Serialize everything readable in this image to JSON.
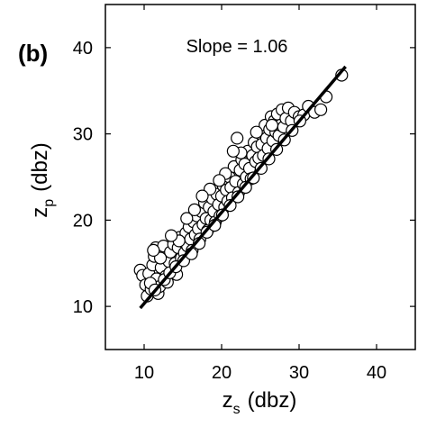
{
  "panel_label": "(b)",
  "chart_data": {
    "type": "scatter",
    "title": "",
    "xlabel": "z",
    "xlabel_sub": "s",
    "xlabel_unit": "(dbz)",
    "ylabel": "z",
    "ylabel_sub": "p",
    "ylabel_unit": "(dbz)",
    "xlim": [
      5,
      45
    ],
    "ylim": [
      5,
      45
    ],
    "xticks": [
      10,
      20,
      30,
      40
    ],
    "yticks": [
      10,
      20,
      30,
      40
    ],
    "annotation": "Slope = 1.06",
    "grid": false,
    "fit_line": {
      "slope": 1.06,
      "points": [
        [
          9.5,
          9.8
        ],
        [
          36.0,
          37.8
        ]
      ]
    },
    "points": [
      [
        9.5,
        14.2
      ],
      [
        9.8,
        13.6
      ],
      [
        10.2,
        12.5
      ],
      [
        10.4,
        11.2
      ],
      [
        10.6,
        13.8
      ],
      [
        10.9,
        12.0
      ],
      [
        11.1,
        14.8
      ],
      [
        11.3,
        15.8
      ],
      [
        11.5,
        16.8
      ],
      [
        11.6,
        13.2
      ],
      [
        11.8,
        11.5
      ],
      [
        12.0,
        12.3
      ],
      [
        12.2,
        14.5
      ],
      [
        12.4,
        16.0
      ],
      [
        12.5,
        17.0
      ],
      [
        12.8,
        13.5
      ],
      [
        13.0,
        12.8
      ],
      [
        13.2,
        15.2
      ],
      [
        13.4,
        16.3
      ],
      [
        13.6,
        14.0
      ],
      [
        13.8,
        17.2
      ],
      [
        14.0,
        15.0
      ],
      [
        14.2,
        13.7
      ],
      [
        14.4,
        16.8
      ],
      [
        14.6,
        18.0
      ],
      [
        14.8,
        15.6
      ],
      [
        15.0,
        17.5
      ],
      [
        15.2,
        16.2
      ],
      [
        15.4,
        18.5
      ],
      [
        15.6,
        17.0
      ],
      [
        15.8,
        19.2
      ],
      [
        16.0,
        17.8
      ],
      [
        16.2,
        16.5
      ],
      [
        16.4,
        19.8
      ],
      [
        16.6,
        18.3
      ],
      [
        16.8,
        20.5
      ],
      [
        17.0,
        19.0
      ],
      [
        17.2,
        17.8
      ],
      [
        17.4,
        21.0
      ],
      [
        17.6,
        19.5
      ],
      [
        17.8,
        22.0
      ],
      [
        18.0,
        20.2
      ],
      [
        18.2,
        18.8
      ],
      [
        18.4,
        21.5
      ],
      [
        18.6,
        20.0
      ],
      [
        18.8,
        22.5
      ],
      [
        19.0,
        21.0
      ],
      [
        19.2,
        19.8
      ],
      [
        19.4,
        23.0
      ],
      [
        19.6,
        21.8
      ],
      [
        19.8,
        20.5
      ],
      [
        20.0,
        22.8
      ],
      [
        20.2,
        24.0
      ],
      [
        20.4,
        21.5
      ],
      [
        20.6,
        23.5
      ],
      [
        20.8,
        22.2
      ],
      [
        21.0,
        25.0
      ],
      [
        21.2,
        23.8
      ],
      [
        21.4,
        22.6
      ],
      [
        21.6,
        26.2
      ],
      [
        21.8,
        24.5
      ],
      [
        22.0,
        29.5
      ],
      [
        22.2,
        23.2
      ],
      [
        22.4,
        25.8
      ],
      [
        22.6,
        27.0
      ],
      [
        22.8,
        24.2
      ],
      [
        23.0,
        26.5
      ],
      [
        23.2,
        25.0
      ],
      [
        23.4,
        28.0
      ],
      [
        23.6,
        26.0
      ],
      [
        23.8,
        24.8
      ],
      [
        24.0,
        27.5
      ],
      [
        24.2,
        29.0
      ],
      [
        24.4,
        26.8
      ],
      [
        24.6,
        28.5
      ],
      [
        24.8,
        27.2
      ],
      [
        25.0,
        30.0
      ],
      [
        25.2,
        28.8
      ],
      [
        25.4,
        27.5
      ],
      [
        25.6,
        31.0
      ],
      [
        25.8,
        29.5
      ],
      [
        26.0,
        28.3
      ],
      [
        26.2,
        30.5
      ],
      [
        26.4,
        32.0
      ],
      [
        26.6,
        29.2
      ],
      [
        26.8,
        31.5
      ],
      [
        27.0,
        30.2
      ],
      [
        27.2,
        32.3
      ],
      [
        27.4,
        29.8
      ],
      [
        27.6,
        31.0
      ],
      [
        27.8,
        32.8
      ],
      [
        28.0,
        30.8
      ],
      [
        28.3,
        31.8
      ],
      [
        28.6,
        33.0
      ],
      [
        29.0,
        31.5
      ],
      [
        29.4,
        32.5
      ],
      [
        30.0,
        32.0
      ],
      [
        30.6,
        32.2
      ],
      [
        31.2,
        33.2
      ],
      [
        32.0,
        32.5
      ],
      [
        32.8,
        32.8
      ],
      [
        33.5,
        34.3
      ],
      [
        35.5,
        36.8
      ],
      [
        10.8,
        12.7
      ],
      [
        11.4,
        11.9
      ],
      [
        12.6,
        13.1
      ],
      [
        13.3,
        13.9
      ],
      [
        14.1,
        14.6
      ],
      [
        15.1,
        15.3
      ],
      [
        16.1,
        16.1
      ],
      [
        17.1,
        17.3
      ],
      [
        18.1,
        18.6
      ],
      [
        19.1,
        19.4
      ],
      [
        20.1,
        20.6
      ],
      [
        21.1,
        21.7
      ],
      [
        22.1,
        22.7
      ],
      [
        23.1,
        23.8
      ],
      [
        24.1,
        24.9
      ],
      [
        25.1,
        26.0
      ],
      [
        26.1,
        27.1
      ],
      [
        27.1,
        28.2
      ],
      [
        28.1,
        29.3
      ],
      [
        29.1,
        30.4
      ],
      [
        30.1,
        31.5
      ],
      [
        12.1,
        15.6
      ],
      [
        14.5,
        17.6
      ],
      [
        16.5,
        21.2
      ],
      [
        18.5,
        23.6
      ],
      [
        20.5,
        25.4
      ],
      [
        22.5,
        27.8
      ],
      [
        24.5,
        30.2
      ],
      [
        26.5,
        31.0
      ],
      [
        19.7,
        24.6
      ],
      [
        17.5,
        22.8
      ],
      [
        15.5,
        20.2
      ],
      [
        13.5,
        18.2
      ],
      [
        11.2,
        16.5
      ],
      [
        21.5,
        28.0
      ]
    ]
  }
}
